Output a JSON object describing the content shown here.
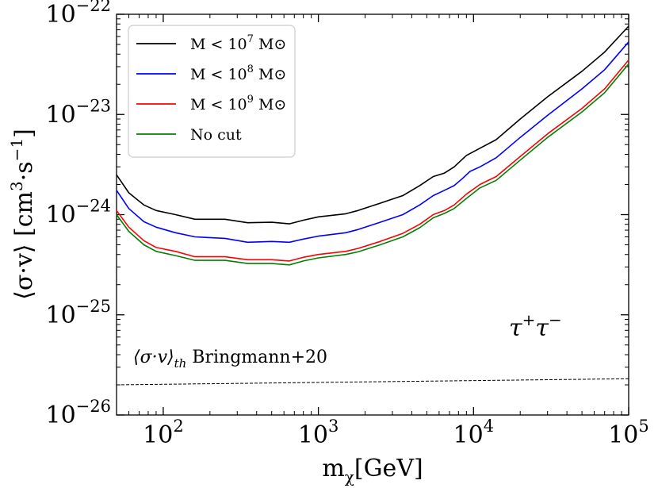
{
  "chart_data": {
    "type": "line",
    "xscale": "log",
    "yscale": "log",
    "xlim": [
      50,
      100000
    ],
    "ylim": [
      1e-26,
      1e-22
    ],
    "xlabel": "m_χ[GeV]",
    "ylabel": "⟨σ·v⟩ [cm³·s⁻¹]",
    "x_ticks": [
      {
        "value": 100,
        "base": "10",
        "exp": "2"
      },
      {
        "value": 1000,
        "base": "10",
        "exp": "3"
      },
      {
        "value": 10000,
        "base": "10",
        "exp": "4"
      },
      {
        "value": 100000,
        "base": "10",
        "exp": "5"
      }
    ],
    "y_ticks": [
      {
        "value": 1e-26,
        "base": "10",
        "exp": "−26"
      },
      {
        "value": 1e-25,
        "base": "10",
        "exp": "−25"
      },
      {
        "value": 1e-24,
        "base": "10",
        "exp": "−24"
      },
      {
        "value": 1e-23,
        "base": "10",
        "exp": "−23"
      },
      {
        "value": 1e-22,
        "base": "10",
        "exp": "−22"
      }
    ],
    "series": [
      {
        "name": "M < 10^7 M⊙",
        "color": "#000000",
        "points": [
          [
            50,
            2.5e-24
          ],
          [
            60,
            1.65e-24
          ],
          [
            75,
            1.25e-24
          ],
          [
            90,
            1.1e-24
          ],
          [
            120,
            1e-24
          ],
          [
            160,
            9e-25
          ],
          [
            250,
            9e-25
          ],
          [
            350,
            8.3e-25
          ],
          [
            500,
            8.4e-25
          ],
          [
            650,
            8.1e-25
          ],
          [
            800,
            8.8e-25
          ],
          [
            1000,
            9.5e-25
          ],
          [
            1500,
            1.02e-24
          ],
          [
            1800,
            1.1e-24
          ],
          [
            2500,
            1.3e-24
          ],
          [
            3500,
            1.55e-24
          ],
          [
            4500,
            1.95e-24
          ],
          [
            5500,
            2.4e-24
          ],
          [
            6500,
            2.6e-24
          ],
          [
            7500,
            3e-24
          ],
          [
            9000,
            3.9e-24
          ],
          [
            11000,
            4.6e-24
          ],
          [
            14000,
            5.6e-24
          ],
          [
            20000,
            9e-24
          ],
          [
            30000,
            1.5e-23
          ],
          [
            50000,
            2.7e-23
          ],
          [
            70000,
            4.2e-23
          ],
          [
            100000,
            7.6e-23
          ]
        ]
      },
      {
        "name": "M < 10^8 M⊙",
        "color": "#0000ff",
        "points": [
          [
            50,
            1.75e-24
          ],
          [
            60,
            1.15e-24
          ],
          [
            75,
            8.5e-25
          ],
          [
            90,
            7.5e-25
          ],
          [
            120,
            6.6e-25
          ],
          [
            160,
            6e-25
          ],
          [
            250,
            5.8e-25
          ],
          [
            350,
            5.3e-25
          ],
          [
            500,
            5.4e-25
          ],
          [
            650,
            5.3e-25
          ],
          [
            800,
            5.7e-25
          ],
          [
            1000,
            6.1e-25
          ],
          [
            1500,
            6.6e-25
          ],
          [
            1800,
            7.1e-25
          ],
          [
            2500,
            8.4e-25
          ],
          [
            3500,
            1e-24
          ],
          [
            4500,
            1.25e-24
          ],
          [
            5500,
            1.55e-24
          ],
          [
            6500,
            1.75e-24
          ],
          [
            7500,
            1.95e-24
          ],
          [
            8500,
            2.3e-24
          ],
          [
            9500,
            2.7e-24
          ],
          [
            11000,
            3e-24
          ],
          [
            14000,
            3.7e-24
          ],
          [
            20000,
            5.9e-24
          ],
          [
            30000,
            9.8e-24
          ],
          [
            50000,
            1.8e-23
          ],
          [
            70000,
            2.8e-23
          ],
          [
            100000,
            5.3e-23
          ]
        ]
      },
      {
        "name": "M < 10^9 M⊙",
        "color": "#ff0000",
        "points": [
          [
            50,
            1.1e-24
          ],
          [
            60,
            7.5e-25
          ],
          [
            75,
            5.5e-25
          ],
          [
            90,
            4.7e-25
          ],
          [
            120,
            4.3e-25
          ],
          [
            160,
            3.8e-25
          ],
          [
            250,
            3.8e-25
          ],
          [
            350,
            3.55e-25
          ],
          [
            500,
            3.55e-25
          ],
          [
            650,
            3.45e-25
          ],
          [
            800,
            3.75e-25
          ],
          [
            1000,
            4e-25
          ],
          [
            1500,
            4.3e-25
          ],
          [
            1800,
            4.6e-25
          ],
          [
            2500,
            5.4e-25
          ],
          [
            3500,
            6.5e-25
          ],
          [
            4500,
            8e-25
          ],
          [
            5500,
            1e-24
          ],
          [
            6500,
            1.1e-24
          ],
          [
            7500,
            1.25e-24
          ],
          [
            9000,
            1.6e-24
          ],
          [
            11000,
            2e-24
          ],
          [
            14000,
            2.4e-24
          ],
          [
            20000,
            3.8e-24
          ],
          [
            30000,
            6.4e-24
          ],
          [
            50000,
            1.15e-23
          ],
          [
            70000,
            1.8e-23
          ],
          [
            100000,
            3.5e-23
          ]
        ]
      },
      {
        "name": "No cut",
        "color": "#008000",
        "points": [
          [
            50,
            1e-24
          ],
          [
            60,
            6.8e-25
          ],
          [
            75,
            5e-25
          ],
          [
            90,
            4.3e-25
          ],
          [
            120,
            3.9e-25
          ],
          [
            160,
            3.5e-25
          ],
          [
            250,
            3.5e-25
          ],
          [
            350,
            3.25e-25
          ],
          [
            500,
            3.25e-25
          ],
          [
            650,
            3.15e-25
          ],
          [
            800,
            3.45e-25
          ],
          [
            1000,
            3.7e-25
          ],
          [
            1500,
            4e-25
          ],
          [
            1800,
            4.25e-25
          ],
          [
            2500,
            5e-25
          ],
          [
            3500,
            6e-25
          ],
          [
            4500,
            7.4e-25
          ],
          [
            5500,
            9.3e-25
          ],
          [
            6500,
            1.03e-24
          ],
          [
            7500,
            1.15e-24
          ],
          [
            9000,
            1.45e-24
          ],
          [
            11000,
            1.85e-24
          ],
          [
            14000,
            2.2e-24
          ],
          [
            20000,
            3.5e-24
          ],
          [
            30000,
            5.9e-24
          ],
          [
            50000,
            1.06e-23
          ],
          [
            70000,
            1.65e-23
          ],
          [
            100000,
            3.2e-23
          ]
        ]
      }
    ],
    "reference_line": {
      "name": "⟨σ·v⟩th Bringmann+20",
      "style": "dashed",
      "color": "#000000",
      "points": [
        [
          50,
          2e-26
        ],
        [
          100000,
          2.3e-26
        ]
      ]
    },
    "legend": {
      "position": "top-left",
      "entries": [
        {
          "main": "M < 10",
          "sup": "7",
          "unit": " M⊙",
          "color": "#000000"
        },
        {
          "main": "M < 10",
          "sup": "8",
          "unit": " M⊙",
          "color": "#0000ff"
        },
        {
          "main": "M < 10",
          "sup": "9",
          "unit": " M⊙",
          "color": "#ff0000"
        },
        {
          "main": "No cut",
          "sup": "",
          "unit": "",
          "color": "#008000"
        }
      ]
    },
    "annotations": {
      "channel": {
        "tau1": "τ",
        "sup1": "+",
        "tau2": "τ",
        "sup2": "−"
      },
      "reference_label": {
        "sigma": "⟨σ·v⟩",
        "sub": "th",
        "text": " Bringmann+20"
      }
    },
    "axis_titles": {
      "x": {
        "main": "m",
        "sub": "χ",
        "rest": "[GeV]"
      },
      "y": {
        "open": "⟨σ·v⟩ [cm",
        "sup1": "3",
        "mid": "·s",
        "sup2": "−1",
        "close": "]"
      }
    }
  }
}
